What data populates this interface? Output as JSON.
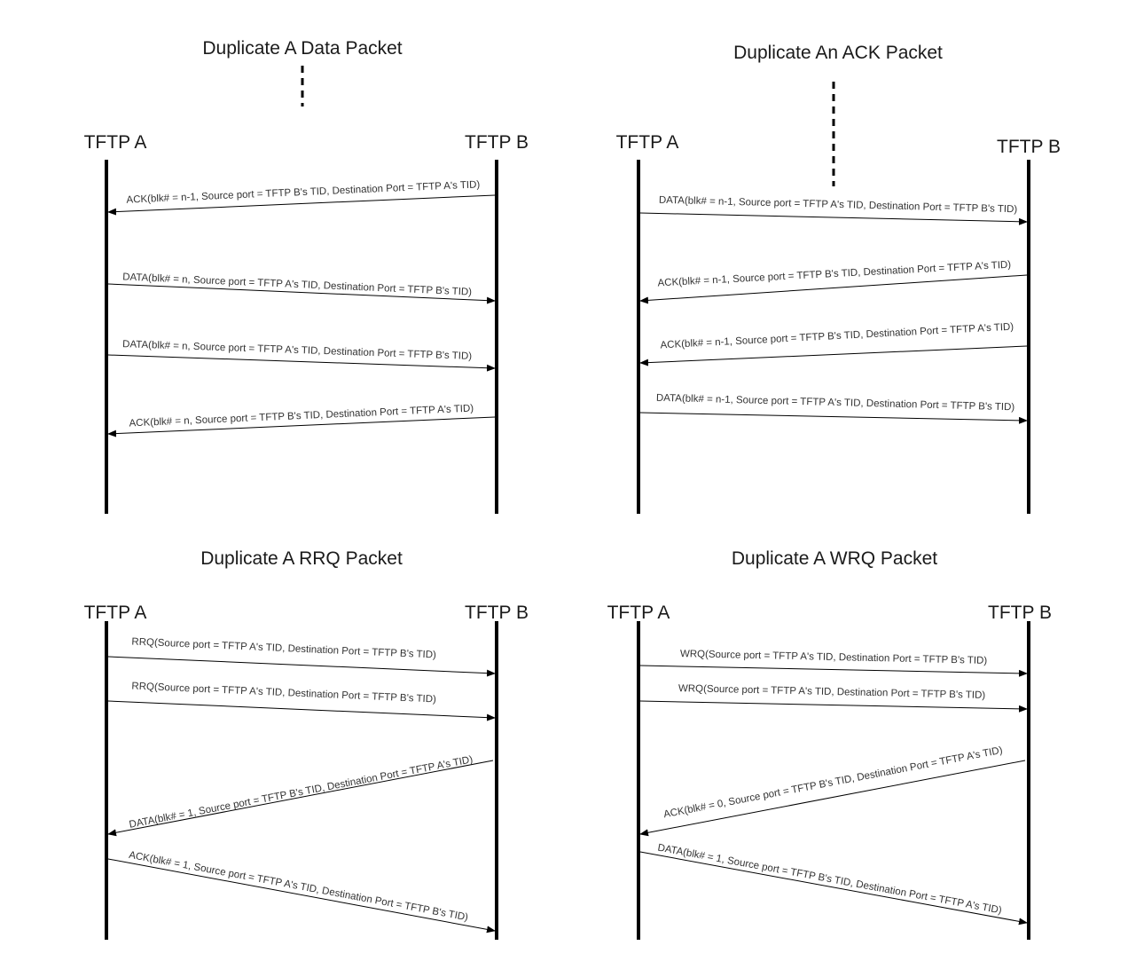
{
  "colors": {
    "line": "#000000",
    "text": "#1a1a1a",
    "label": "#333333",
    "background": "#ffffff"
  },
  "diagrams": [
    {
      "title": "Duplicate A Data Packet",
      "actor_a": "TFTP A",
      "actor_b": "TFTP B",
      "messages": [
        {
          "label": "ACK(blk# = n-1, Source port = TFTP B's TID, Destination Port = TFTP A's TID)",
          "direction": "B-to-A"
        },
        {
          "label": "DATA(blk# = n, Source port = TFTP A's TID, Destination Port = TFTP B's TID)",
          "direction": "A-to-B"
        },
        {
          "label": "DATA(blk# = n, Source port = TFTP A's TID, Destination Port = TFTP B's TID)",
          "direction": "A-to-B"
        },
        {
          "label": "ACK(blk# = n, Source port = TFTP B's TID, Destination Port = TFTP A's TID)",
          "direction": "B-to-A"
        }
      ]
    },
    {
      "title": "Duplicate An ACK Packet",
      "actor_a": "TFTP A",
      "actor_b": "TFTP B",
      "messages": [
        {
          "label": "DATA(blk# = n-1, Source port = TFTP A's TID, Destination Port = TFTP B's TID)",
          "direction": "A-to-B"
        },
        {
          "label": "ACK(blk# = n-1, Source port = TFTP B's TID, Destination Port = TFTP A's TID)",
          "direction": "B-to-A"
        },
        {
          "label": "ACK(blk# = n-1, Source port = TFTP B's TID, Destination Port = TFTP A's TID)",
          "direction": "B-to-A"
        },
        {
          "label": "DATA(blk# = n-1, Source port = TFTP A's TID, Destination Port = TFTP B's TID)",
          "direction": "A-to-B"
        }
      ]
    },
    {
      "title": "Duplicate A RRQ Packet",
      "actor_a": "TFTP A",
      "actor_b": "TFTP B",
      "messages": [
        {
          "label": "RRQ(Source port = TFTP A's TID, Destination Port = TFTP B's TID)",
          "direction": "A-to-B"
        },
        {
          "label": "RRQ(Source port = TFTP A's TID, Destination Port = TFTP B's TID)",
          "direction": "A-to-B"
        },
        {
          "label": "DATA(blk# = 1, Source port = TFTP B's TID, Destination Port = TFTP A's TID)",
          "direction": "B-to-A"
        },
        {
          "label": "ACK(blk# = 1, Source port = TFTP A's TID, Destination Port = TFTP B's TID)",
          "direction": "A-to-B"
        }
      ]
    },
    {
      "title": "Duplicate A WRQ Packet",
      "actor_a": "TFTP A",
      "actor_b": "TFTP B",
      "messages": [
        {
          "label": "WRQ(Source port = TFTP A's TID, Destination Port = TFTP B's TID)",
          "direction": "A-to-B"
        },
        {
          "label": "WRQ(Source port = TFTP A's TID, Destination Port = TFTP B's TID)",
          "direction": "A-to-B"
        },
        {
          "label": "ACK(blk# = 0, Source port = TFTP B's TID, Destination Port = TFTP A's TID)",
          "direction": "B-to-A"
        },
        {
          "label": "DATA(blk# = 1, Source port = TFTP B's TID, Destination Port = TFTP A's TID)",
          "direction": "B-to-A"
        }
      ]
    }
  ]
}
